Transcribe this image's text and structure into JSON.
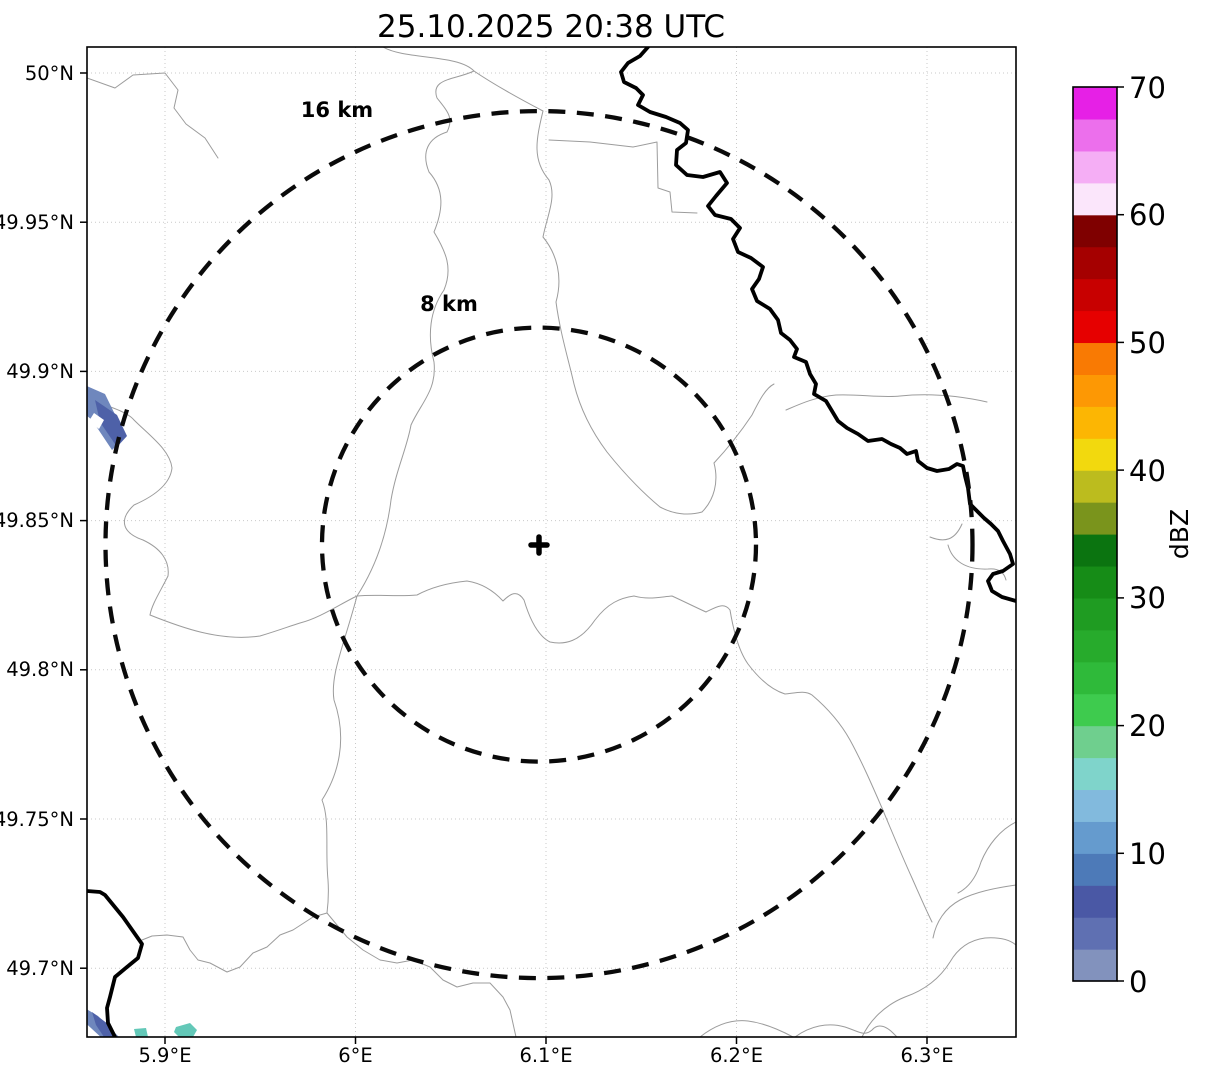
{
  "title": "25.10.2025 20:38 UTC",
  "axes": {
    "x_ticks": [
      "5.9°E",
      "6°E",
      "6.1°E",
      "6.2°E",
      "6.3°E"
    ],
    "y_ticks": [
      "50°N",
      "49.95°N",
      "49.9°N",
      "49.85°N",
      "49.8°N",
      "49.75°N",
      "49.7°N"
    ]
  },
  "map": {
    "rings": [
      {
        "radius_km": 16,
        "label": "16 km"
      },
      {
        "radius_km": 8,
        "label": "8 km"
      }
    ],
    "center_marker": "+",
    "echo_colors": {
      "weak_light_blue": "#6f87bd",
      "weak_dark_blue": "#4e61a8",
      "moderate_teal": "#63c8b8"
    }
  },
  "colorbar": {
    "label": "dBZ",
    "ticks": [
      "70",
      "60",
      "50",
      "40",
      "30",
      "20",
      "10",
      "0"
    ],
    "min": 0,
    "max": 70,
    "segment_step_dbz": 2.5,
    "segment_colors_bottom_to_top": [
      "#8292bd",
      "#5f70b2",
      "#4a58a5",
      "#4d7ab8",
      "#659bce",
      "#82badd",
      "#7fd4cb",
      "#6fcf8e",
      "#3ecb4e",
      "#2fba3a",
      "#27ab2c",
      "#1f9c22",
      "#168c17",
      "#0b7410",
      "#7a941c",
      "#bcbc1e",
      "#f2d90e",
      "#fcb603",
      "#fd9804",
      "#f97a03",
      "#e60000",
      "#c80000",
      "#a50000",
      "#7f0000",
      "#fbe6fb",
      "#f5aef5",
      "#ec6fec",
      "#e620e6"
    ]
  },
  "chart_data": {
    "type": "map",
    "subtype": "weather-radar-reflectivity",
    "title": "25.10.2025 20:38 UTC",
    "x_axis": {
      "ticks_deg_east": [
        5.9,
        6.0,
        6.1,
        6.2,
        6.3
      ],
      "range_deg_east": [
        5.86,
        6.35
      ],
      "grid": true
    },
    "y_axis": {
      "ticks_deg_north": [
        50.0,
        49.95,
        49.9,
        49.85,
        49.8,
        49.75,
        49.7
      ],
      "range_deg_north": [
        49.677,
        50.009
      ],
      "grid": true
    },
    "radar_center": {
      "lon_deg_east": 6.097,
      "lat_deg_north": 49.843
    },
    "range_rings_km": [
      8,
      16
    ],
    "colorbar": {
      "label": "dBZ",
      "min": 0,
      "max": 70,
      "tick_step": 10,
      "segment_step_dbz": 2.5
    },
    "echoes": [
      {
        "approx_lon": 5.862,
        "approx_lat": 49.89,
        "dbz_approx": "0-7.5",
        "note": "small patch at west edge"
      },
      {
        "approx_lon": 5.865,
        "approx_lat": 49.681,
        "dbz_approx": "0-7.5",
        "note": "small patch at bottom-left edge"
      },
      {
        "approx_lon": 5.888,
        "approx_lat": 49.678,
        "dbz_approx": "12.5-17.5",
        "note": "tiny teal speck at bottom edge"
      },
      {
        "approx_lon": 5.91,
        "approx_lat": 49.679,
        "dbz_approx": "12.5-17.5",
        "note": "tiny teal patch at bottom edge"
      }
    ],
    "legend_position": "right-colorbar"
  }
}
